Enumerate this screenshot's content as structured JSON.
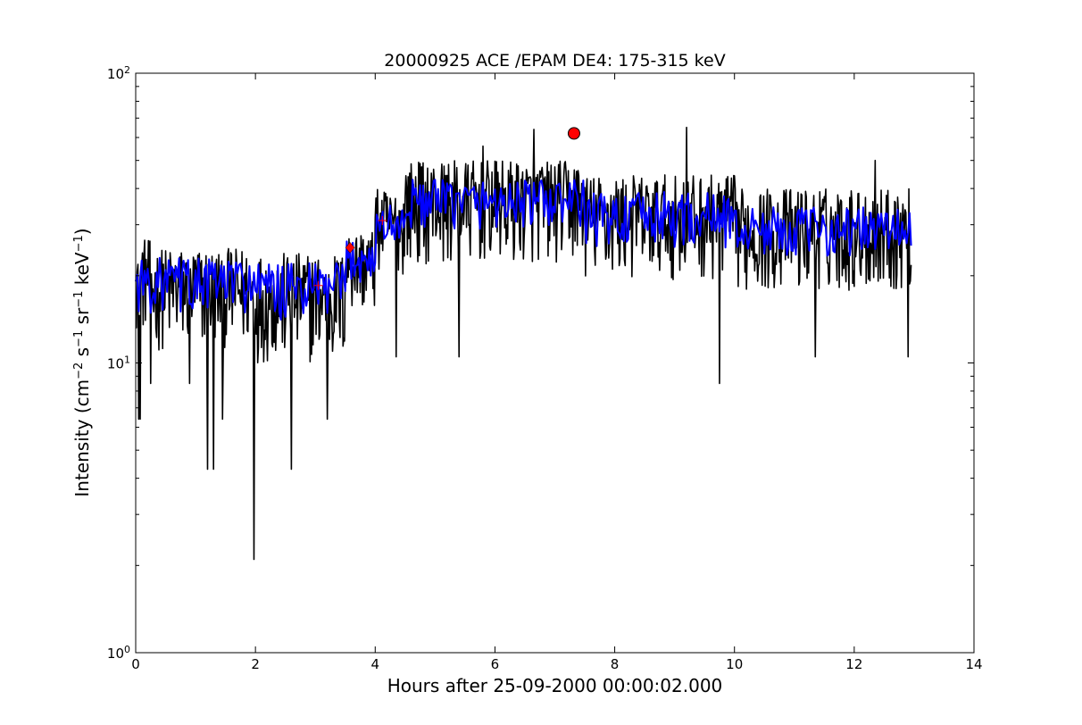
{
  "chart_data": {
    "type": "line",
    "title": "20000925 ACE /EPAM DE4: 175-315 keV",
    "xlabel": "Hours after 25-09-2000 00:00:02.000",
    "ylabel": {
      "prefix": "Intensity (cm",
      "exp1": "−2",
      "mid1": " s",
      "exp2": "−1",
      "mid2": " sr",
      "exp3": "−1",
      "mid3": " keV",
      "exp4": "−1",
      "suffix": ")"
    },
    "xlim": [
      0,
      14
    ],
    "ylim": [
      1,
      100
    ],
    "yscale": "log",
    "xticks": [
      "0",
      "2",
      "4",
      "6",
      "8",
      "10",
      "12",
      "14"
    ],
    "yticks": [
      {
        "base": "10",
        "exp": "0"
      },
      {
        "base": "10",
        "exp": "1"
      },
      {
        "base": "10",
        "exp": "2"
      }
    ],
    "grid": false,
    "series": [
      {
        "role": "raw",
        "color": "#000000",
        "x_start": 0.0,
        "x_end": 12.95,
        "segments": [
          {
            "x": [
              0.0,
              0.25
            ],
            "level": 20,
            "spread": 5
          },
          {
            "x": [
              0.25,
              2.0
            ],
            "level": 18,
            "spread": 5
          },
          {
            "x": [
              2.0,
              3.5
            ],
            "level": 17,
            "spread": 5
          },
          {
            "x": [
              3.5,
              4.0
            ],
            "level": 22,
            "spread": 5
          },
          {
            "x": [
              4.0,
              4.5
            ],
            "level": 30,
            "spread": 7
          },
          {
            "x": [
              4.5,
              7.5
            ],
            "level": 36,
            "spread": 10
          },
          {
            "x": [
              7.5,
              10.0
            ],
            "level": 32,
            "spread": 9
          },
          {
            "x": [
              10.0,
              12.95
            ],
            "level": 29,
            "spread": 8
          }
        ],
        "spikes": [
          {
            "x": 0.05,
            "y": 6.4
          },
          {
            "x": 0.08,
            "y": 6.4
          },
          {
            "x": 0.25,
            "y": 8.5
          },
          {
            "x": 0.9,
            "y": 8.5
          },
          {
            "x": 1.2,
            "y": 4.3
          },
          {
            "x": 1.3,
            "y": 4.3
          },
          {
            "x": 1.45,
            "y": 6.4
          },
          {
            "x": 1.97,
            "y": 2.1
          },
          {
            "x": 2.6,
            "y": 4.3
          },
          {
            "x": 3.2,
            "y": 6.4
          },
          {
            "x": 4.35,
            "y": 10.5
          },
          {
            "x": 5.4,
            "y": 10.5
          },
          {
            "x": 9.75,
            "y": 8.5
          },
          {
            "x": 11.35,
            "y": 10.5
          },
          {
            "x": 12.9,
            "y": 10.5
          },
          {
            "x": 9.2,
            "y": 65
          },
          {
            "x": 6.65,
            "y": 64
          },
          {
            "x": 5.8,
            "y": 56
          },
          {
            "x": 12.35,
            "y": 50
          }
        ]
      },
      {
        "role": "smoothed",
        "color": "#0000ff",
        "x_start": 0.0,
        "x_end": 12.95,
        "segments": [
          {
            "x": [
              0.0,
              2.0
            ],
            "level": 19,
            "spread": 3
          },
          {
            "x": [
              2.0,
              3.5
            ],
            "level": 18,
            "spread": 3
          },
          {
            "x": [
              3.5,
              4.0
            ],
            "level": 23,
            "spread": 3
          },
          {
            "x": [
              4.0,
              4.5
            ],
            "level": 30,
            "spread": 4
          },
          {
            "x": [
              4.5,
              7.5
            ],
            "level": 36,
            "spread": 5
          },
          {
            "x": [
              7.5,
              10.0
            ],
            "level": 32,
            "spread": 5
          },
          {
            "x": [
              10.0,
              12.95
            ],
            "level": 29,
            "spread": 4
          }
        ]
      }
    ],
    "markers": [
      {
        "kind": "peak-circle",
        "x": 7.32,
        "y": 62,
        "color": "#ff0000"
      },
      {
        "kind": "diamond",
        "x": 3.58,
        "y": 25,
        "color": "#ff0000"
      },
      {
        "kind": "plus",
        "x": 3.05,
        "y": 18.5,
        "color": "#ff0000"
      },
      {
        "kind": "plus",
        "x": 4.12,
        "y": 31,
        "color": "#ff0000"
      }
    ]
  }
}
